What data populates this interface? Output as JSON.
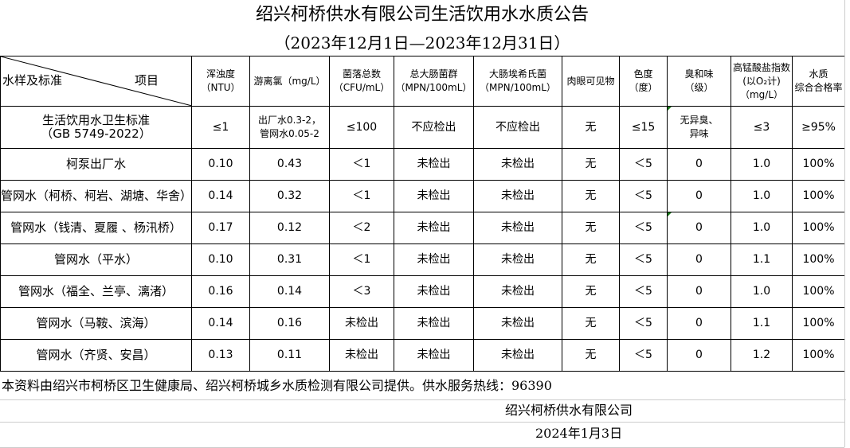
{
  "title": "绍兴柯桥供水有限公司生活饮用水水质公告",
  "subtitle": "（2023年12月1日—2023年12月31日）",
  "header": {
    "corner_left": "水样及标准",
    "corner_right": "项目",
    "columns": [
      "浑浊度\n（NTU）",
      "游离氯（mg/L）",
      "菌落总数\n（CFU/mL）",
      "总大肠菌群\n（MPN/100mL）",
      "大肠埃希氏菌\n（MPN/100mL）",
      "肉眼可见物",
      "色度\n（度）",
      "臭和味\n（级）",
      "高锰酸盐指数(以O₂计)\n（mg/L）",
      "水质\n综合合格率"
    ]
  },
  "standard": {
    "name": "生活饮用水卫生标准\n（GB 5749-2022）",
    "values": [
      "≤1",
      "出厂水0.3-2，\n管网水0.05-2",
      "≤100",
      "不应检出",
      "不应检出",
      "无",
      "≤15",
      "无异臭、\n异味",
      "≤3",
      "≥95%"
    ]
  },
  "rows": [
    {
      "name": "柯泵出厂水",
      "values": [
        "0.10",
        "0.43",
        "＜1",
        "未检出",
        "未检出",
        "无",
        "＜5",
        "0",
        "1.0",
        "100%"
      ]
    },
    {
      "name": "管网水（柯桥、柯岩、湖塘、华舍）",
      "values": [
        "0.14",
        "0.32",
        "＜1",
        "未检出",
        "未检出",
        "无",
        "＜5",
        "0",
        "1.0",
        "100%"
      ]
    },
    {
      "name": "管网水（钱清、夏履 、杨汛桥）",
      "values": [
        "0.17",
        "0.12",
        "＜2",
        "未检出",
        "未检出",
        "无",
        "＜5",
        "0",
        "1.0",
        "100%"
      ]
    },
    {
      "name": "管网水（平水）",
      "values": [
        "0.10",
        "0.31",
        "＜1",
        "未检出",
        "未检出",
        "无",
        "＜5",
        "0",
        "1.1",
        "100%"
      ]
    },
    {
      "name": "管网水（福全、兰亭、漓渚）",
      "values": [
        "0.16",
        "0.14",
        "＜3",
        "未检出",
        "未检出",
        "无",
        "＜5",
        "0",
        "1.0",
        "100%"
      ]
    },
    {
      "name": "管网水（马鞍、滨海）",
      "values": [
        "0.14",
        "0.16",
        "未检出",
        "未检出",
        "未检出",
        "无",
        "＜5",
        "0",
        "1.1",
        "100%"
      ]
    },
    {
      "name": "管网水（齐贤、安昌）",
      "values": [
        "0.13",
        "0.11",
        "未检出",
        "未检出",
        "未检出",
        "无",
        "＜5",
        "0",
        "1.2",
        "100%"
      ]
    }
  ],
  "footer": {
    "note": "本资料由绍兴市柯桥区卫生健康局、绍兴柯桥城乡水质检测有限公司提供。供水服务热线：96390",
    "company": "绍兴柯桥供水有限公司",
    "date": "2024年1月3日"
  }
}
